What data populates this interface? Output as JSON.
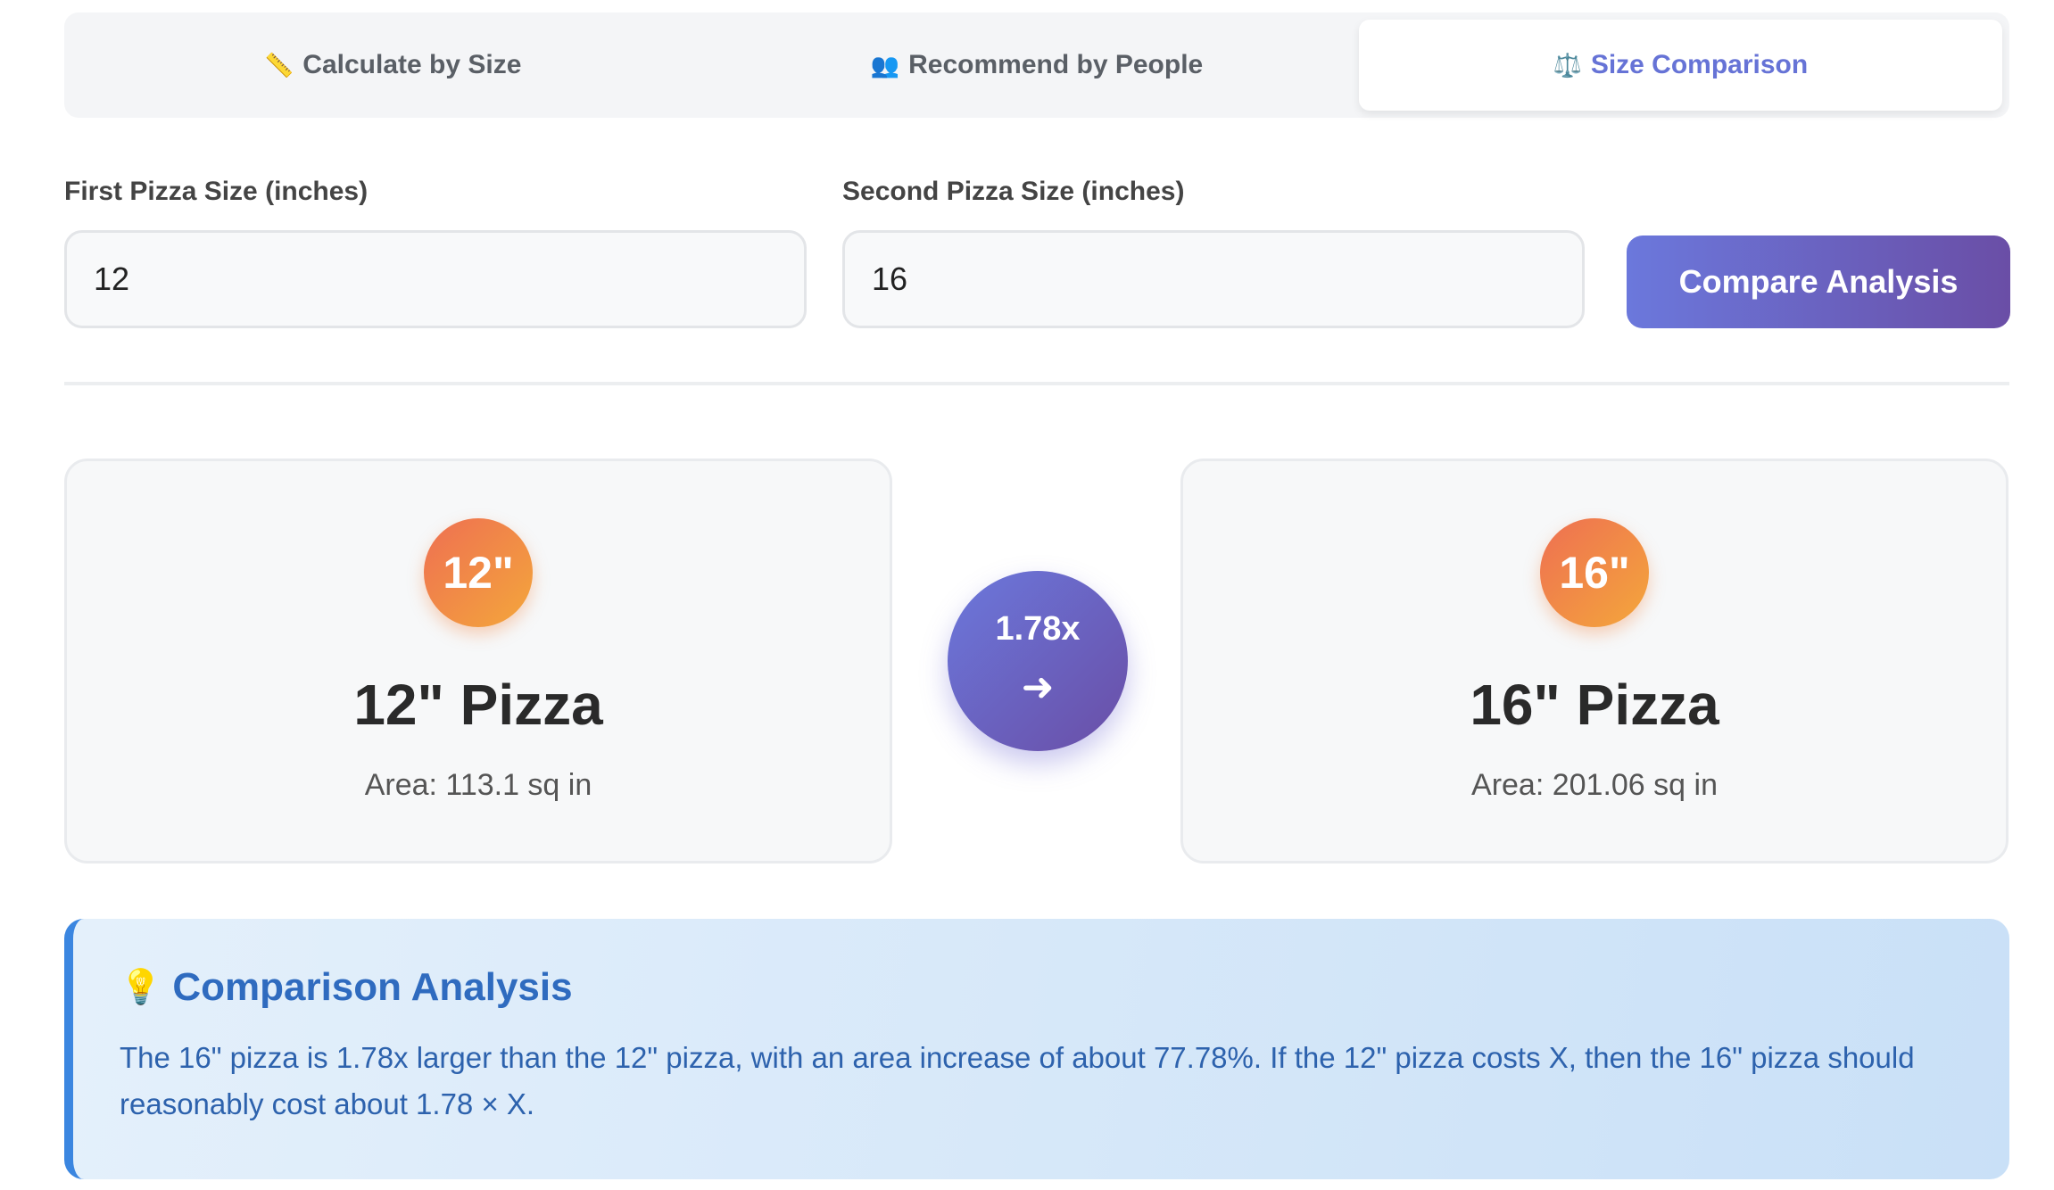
{
  "tabs": [
    {
      "icon": "📏",
      "label": "Calculate by Size",
      "active": false
    },
    {
      "icon": "👥",
      "label": "Recommend by People",
      "active": false
    },
    {
      "icon": "⚖️",
      "label": "Size Comparison",
      "active": true
    }
  ],
  "form": {
    "first_label": "First Pizza Size (inches)",
    "first_value": "12",
    "second_label": "Second Pizza Size (inches)",
    "second_value": "16",
    "button_label": "Compare Analysis"
  },
  "comparison": {
    "left": {
      "badge": "12\"",
      "title": "12\" Pizza",
      "area": "Area: 113.1 sq in"
    },
    "ratio": "1.78x",
    "arrow": "➜",
    "right": {
      "badge": "16\"",
      "title": "16\" Pizza",
      "area": "Area: 201.06 sq in"
    }
  },
  "analysis": {
    "icon": "💡",
    "title": "Comparison Analysis",
    "text": "The 16\" pizza is 1.78x larger than the 12\" pizza, with an area increase of about 77.78%. If the 12\" pizza costs X, then the 16\" pizza should reasonably cost about 1.78 × X."
  },
  "colors": {
    "accent": "#6673d6",
    "button_gradient_start": "#6b78dc",
    "button_gradient_end": "#6a4ea6",
    "badge_gradient_start": "#ee6f52",
    "badge_gradient_end": "#f4a73b",
    "analysis_text": "#2d62ad"
  }
}
